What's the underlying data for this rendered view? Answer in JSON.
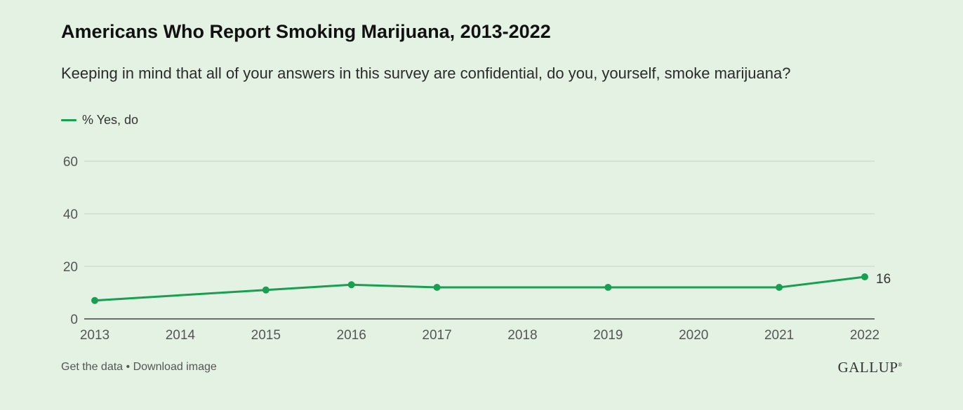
{
  "header": {
    "title": "Americans Who Report Smoking Marijuana, 2013-2022",
    "subtitle": "Keeping in mind that all of your answers in this survey are confidential, do you, yourself, smoke marijuana?"
  },
  "legend": {
    "label": "% Yes, do"
  },
  "footer": {
    "get_data": "Get the data",
    "separator": "•",
    "download": "Download image",
    "brand": "GALLUP",
    "brand_mark": "®"
  },
  "colors": {
    "background": "#e4f2e3",
    "series": "#1a9e52",
    "grid": "#cfdecf",
    "axis": "#444444"
  },
  "chart_data": {
    "type": "line",
    "title": "Americans Who Report Smoking Marijuana, 2013-2022",
    "subtitle": "Keeping in mind that all of your answers in this survey are confidential, do you, yourself, smoke marijuana?",
    "xlabel": "",
    "ylabel": "",
    "x_ticks": [
      "2013",
      "2014",
      "2015",
      "2016",
      "2017",
      "2018",
      "2019",
      "2020",
      "2021",
      "2022"
    ],
    "y_ticks": [
      0,
      20,
      40,
      60
    ],
    "xlim": [
      2013,
      2022
    ],
    "ylim": [
      0,
      60
    ],
    "grid": true,
    "legend_position": "top-left",
    "series": [
      {
        "name": "% Yes, do",
        "x": [
          2013,
          2015,
          2016,
          2017,
          2019,
          2021,
          2022
        ],
        "values": [
          7,
          11,
          13,
          12,
          12,
          12,
          16
        ],
        "end_label": "16"
      }
    ]
  }
}
